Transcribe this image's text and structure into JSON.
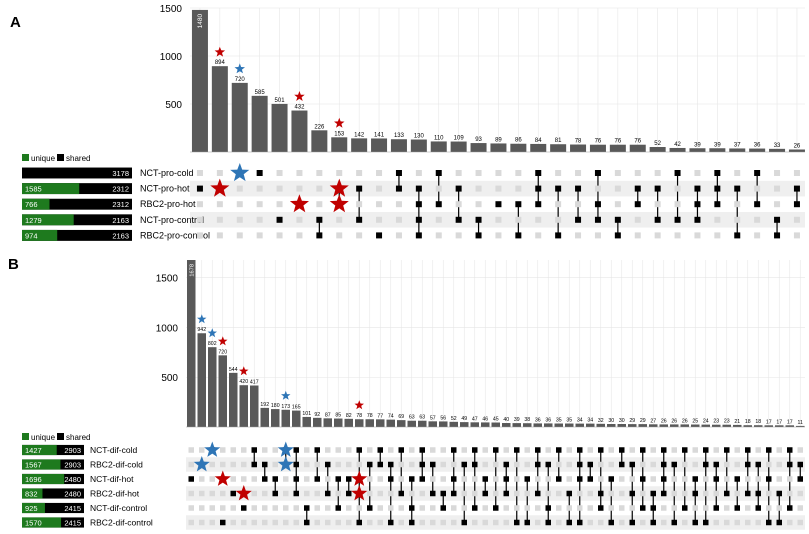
{
  "colors": {
    "bar": "#595959",
    "unique": "#1e7a1e",
    "shared": "#000000",
    "dot_on": "#000000",
    "dot_off": "#d9d9d9",
    "star_red": "#c00000",
    "star_blue": "#2e75b6",
    "stripe": "#efefef",
    "grid": "#e6e6e6"
  },
  "legend": {
    "unique": "unique",
    "shared": "shared"
  },
  "chart_data": [
    {
      "type": "bar",
      "panel_label": "A",
      "title": "",
      "xlabel": "",
      "ylabel": "",
      "ylim": [
        0,
        1500
      ],
      "yticks": [
        500,
        1000,
        1500
      ],
      "values": [
        1480,
        894,
        720,
        585,
        501,
        432,
        226,
        153,
        142,
        141,
        133,
        130,
        110,
        109,
        93,
        89,
        86,
        84,
        81,
        78,
        76,
        76,
        76,
        52,
        42,
        39,
        39,
        37,
        36,
        33,
        26
      ],
      "sets": [
        {
          "name": "NCT-pro-cold",
          "unique": null,
          "shared": 3178,
          "unique_width_fraction": 0.0
        },
        {
          "name": "NCT-pro-hot",
          "unique": 1585,
          "shared": 2312,
          "unique_width_fraction": 0.52
        },
        {
          "name": "RBC2-pro-hot",
          "unique": 766,
          "shared": 2312,
          "unique_width_fraction": 0.25
        },
        {
          "name": "NCT-pro-control",
          "unique": 1279,
          "shared": 2163,
          "unique_width_fraction": 0.47
        },
        {
          "name": "RBC2-pro-control",
          "unique": 974,
          "shared": 2163,
          "unique_width_fraction": 0.32
        }
      ],
      "memberships": [
        [
          1
        ],
        [
          1
        ],
        [
          0
        ],
        [
          0
        ],
        [
          3
        ],
        [
          2
        ],
        [
          3,
          4
        ],
        [
          1,
          2
        ],
        [
          1,
          3
        ],
        [
          4
        ],
        [
          0,
          1
        ],
        [
          1,
          2,
          3,
          4
        ],
        [
          0,
          2
        ],
        [
          1,
          3
        ],
        [
          3,
          4
        ],
        [
          2
        ],
        [
          2,
          4
        ],
        [
          0,
          1,
          2
        ],
        [
          1,
          4
        ],
        [
          1,
          3
        ],
        [
          0,
          2,
          3
        ],
        [
          3,
          4
        ],
        [
          1,
          2
        ],
        [
          1,
          3
        ],
        [
          0,
          3
        ],
        [
          1,
          2,
          3
        ],
        [
          0,
          1,
          2
        ],
        [
          1,
          4
        ],
        [
          0,
          2
        ],
        [
          3,
          4
        ],
        [
          1,
          2
        ]
      ],
      "bar_stars": [
        {
          "bar": 1,
          "color": "red"
        },
        {
          "bar": 2,
          "color": "blue"
        },
        {
          "bar": 5,
          "color": "red"
        },
        {
          "bar": 7,
          "color": "red"
        }
      ],
      "matrix_stars": [
        {
          "bar": 1,
          "set": 1,
          "color": "red"
        },
        {
          "bar": 2,
          "set": 0,
          "color": "blue"
        },
        {
          "bar": 5,
          "set": 2,
          "color": "red"
        },
        {
          "bar": 7,
          "set": 1,
          "color": "red"
        },
        {
          "bar": 7,
          "set": 2,
          "color": "red"
        }
      ]
    },
    {
      "type": "bar",
      "panel_label": "B",
      "title": "",
      "xlabel": "",
      "ylabel": "",
      "ylim": [
        0,
        1678
      ],
      "yticks": [
        500,
        1000,
        1500
      ],
      "values": [
        1678,
        942,
        802,
        720,
        544,
        420,
        417,
        192,
        180,
        173,
        165,
        101,
        92,
        87,
        85,
        82,
        78,
        78,
        77,
        74,
        69,
        63,
        63,
        57,
        56,
        52,
        49,
        47,
        46,
        45,
        40,
        39,
        38,
        36,
        36,
        35,
        35,
        34,
        34,
        32,
        30,
        30,
        29,
        29,
        27,
        26,
        26,
        26,
        25,
        24,
        23,
        23,
        21,
        18,
        18,
        17,
        17,
        17,
        11
      ],
      "sets": [
        {
          "name": "NCT-dif-cold",
          "unique": 1427,
          "shared": 2903,
          "unique_width_fraction": 0.56
        },
        {
          "name": "RBC2-dif-cold",
          "unique": 1567,
          "shared": 2903,
          "unique_width_fraction": 0.62
        },
        {
          "name": "NCT-dif-hot",
          "unique": 1696,
          "shared": 2480,
          "unique_width_fraction": 0.68
        },
        {
          "name": "RBC2-dif-hot",
          "unique": 832,
          "shared": 2480,
          "unique_width_fraction": 0.33
        },
        {
          "name": "NCT-dif-control",
          "unique": 925,
          "shared": 2415,
          "unique_width_fraction": 0.37
        },
        {
          "name": "RBC2-dif-control",
          "unique": 1570,
          "shared": 2415,
          "unique_width_fraction": 0.63
        }
      ],
      "memberships": [
        [
          2
        ],
        [
          1
        ],
        [
          0
        ],
        [
          5
        ],
        [
          3
        ],
        [
          4
        ],
        [
          0,
          1
        ],
        [
          1,
          2
        ],
        [
          2,
          3
        ],
        [
          0,
          1
        ],
        [
          0,
          1,
          2,
          3
        ],
        [
          4,
          5
        ],
        [
          0,
          2
        ],
        [
          1,
          3
        ],
        [
          2,
          4
        ],
        [
          2,
          3
        ],
        [
          0,
          5
        ],
        [
          1,
          4
        ],
        [
          0,
          1
        ],
        [
          1,
          2,
          5
        ],
        [
          0,
          3
        ],
        [
          2,
          4,
          5
        ],
        [
          0,
          1,
          2
        ],
        [
          1,
          3
        ],
        [
          3,
          4
        ],
        [
          0,
          2,
          3
        ],
        [
          1,
          5
        ],
        [
          0,
          1,
          4
        ],
        [
          2,
          3
        ],
        [
          0,
          4
        ],
        [
          1,
          2,
          3
        ],
        [
          0,
          5
        ],
        [
          2,
          5
        ],
        [
          0,
          1,
          3
        ],
        [
          1,
          4,
          5
        ],
        [
          0,
          2
        ],
        [
          3,
          5
        ],
        [
          0,
          1,
          2,
          5
        ],
        [
          1,
          2
        ],
        [
          0,
          3,
          4
        ],
        [
          2,
          5
        ],
        [
          0,
          1
        ],
        [
          1,
          3,
          5
        ],
        [
          0,
          2,
          4
        ],
        [
          3,
          4,
          5
        ],
        [
          0,
          1,
          2,
          3
        ],
        [
          1,
          5
        ],
        [
          0,
          4
        ],
        [
          2,
          3,
          5
        ],
        [
          0,
          1,
          5
        ],
        [
          1,
          2,
          4
        ],
        [
          0,
          3
        ],
        [
          2,
          4
        ],
        [
          0,
          1,
          3
        ],
        [
          1,
          3,
          4
        ],
        [
          0,
          2,
          5
        ],
        [
          3,
          5
        ],
        [
          0,
          1,
          4
        ],
        [
          1,
          2
        ]
      ],
      "bar_stars": [
        {
          "bar": 1,
          "color": "blue"
        },
        {
          "bar": 2,
          "color": "blue"
        },
        {
          "bar": 3,
          "color": "red"
        },
        {
          "bar": 5,
          "color": "red"
        },
        {
          "bar": 9,
          "color": "blue"
        },
        {
          "bar": 16,
          "color": "red"
        }
      ],
      "matrix_stars": [
        {
          "bar": 1,
          "set": 1,
          "color": "blue"
        },
        {
          "bar": 2,
          "set": 0,
          "color": "blue"
        },
        {
          "bar": 3,
          "set": 2,
          "color": "red"
        },
        {
          "bar": 5,
          "set": 3,
          "color": "red"
        },
        {
          "bar": 9,
          "set": 0,
          "color": "blue"
        },
        {
          "bar": 9,
          "set": 1,
          "color": "blue"
        },
        {
          "bar": 16,
          "set": 2,
          "color": "red"
        },
        {
          "bar": 16,
          "set": 3,
          "color": "red"
        }
      ]
    }
  ]
}
